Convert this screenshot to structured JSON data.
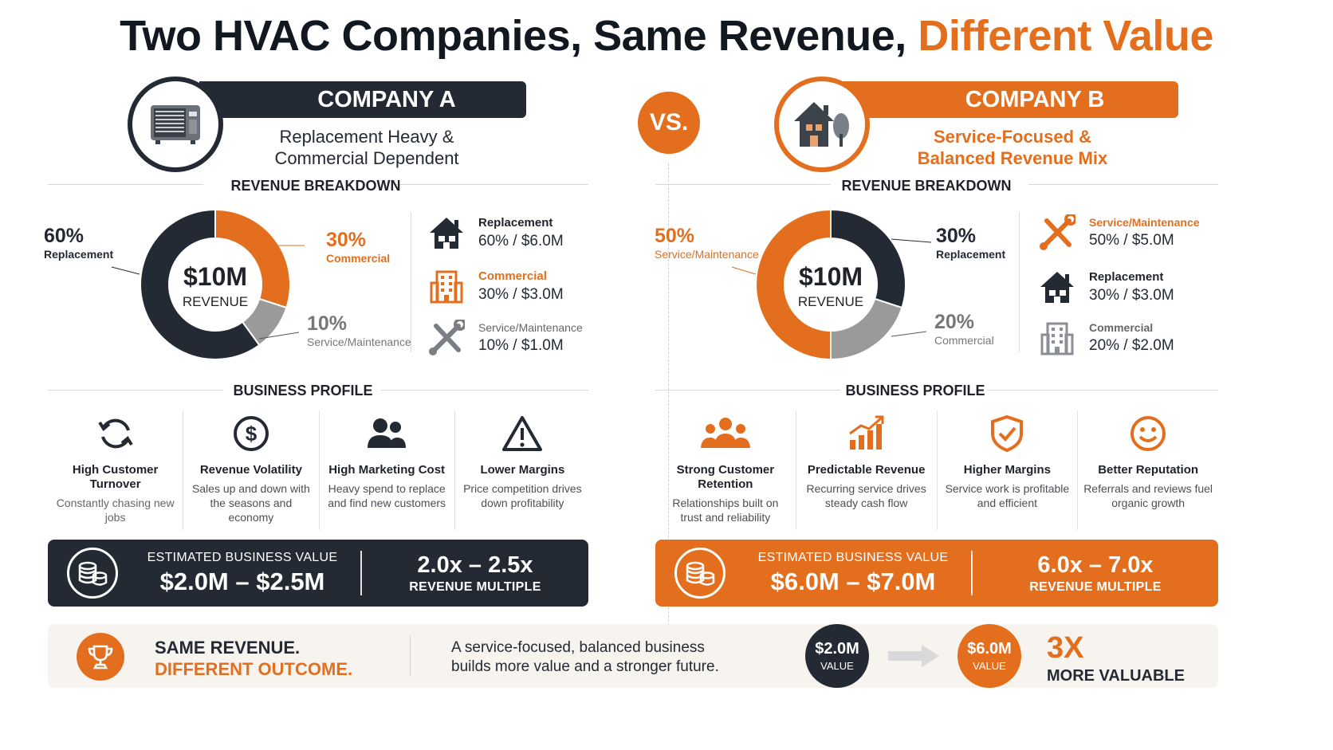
{
  "title": {
    "main": "Two HVAC Companies, Same Revenue,",
    "accent": "Different Value"
  },
  "vs_label": "VS.",
  "colors": {
    "dark": "#232a33",
    "orange": "#e36f1e",
    "gray": "#9a9a9a"
  },
  "company_a": {
    "name": "COMPANY A",
    "subtitle_l1": "Replacement Heavy &",
    "subtitle_l2": "Commercial Dependent",
    "icon": "ac-unit-icon",
    "breakdown_title": "REVENUE BREAKDOWN",
    "center_value": "$10M",
    "center_label": "REVENUE",
    "callouts": [
      {
        "pct": "60%",
        "label": "Replacement"
      },
      {
        "pct": "30%",
        "label": "Commercial"
      },
      {
        "pct": "10%",
        "label": "Service/Maintenance"
      }
    ],
    "legend": [
      {
        "name": "Replacement",
        "value": "60% / $6.0M",
        "icon": "house-icon"
      },
      {
        "name": "Commercial",
        "value": "30% / $3.0M",
        "icon": "building-icon"
      },
      {
        "name": "Service/Maintenance",
        "value": "10% / $1.0M",
        "icon": "tools-icon"
      }
    ],
    "profile_title": "BUSINESS PROFILE",
    "profile": [
      {
        "head": "High Customer Turnover",
        "desc": "Constantly chasing new jobs",
        "icon": "refresh-icon"
      },
      {
        "head": "Revenue Volatility",
        "desc": "Sales up and down with the seasons and economy",
        "icon": "dollar-icon"
      },
      {
        "head": "High Marketing Cost",
        "desc": "Heavy spend to replace and find new customers",
        "icon": "people-icon"
      },
      {
        "head": "Lower Margins",
        "desc": "Price competition drives down profitability",
        "icon": "warning-icon"
      }
    ],
    "value_label": "ESTIMATED BUSINESS VALUE",
    "value": "$2.0M – $2.5M",
    "multiple": "2.0x – 2.5x",
    "multiple_label": "REVENUE MULTIPLE"
  },
  "company_b": {
    "name": "COMPANY B",
    "subtitle_l1": "Service-Focused &",
    "subtitle_l2": "Balanced Revenue Mix",
    "icon": "home-tree-icon",
    "breakdown_title": "REVENUE BREAKDOWN",
    "center_value": "$10M",
    "center_label": "REVENUE",
    "callouts": [
      {
        "pct": "50%",
        "label": "Service/Maintenance"
      },
      {
        "pct": "30%",
        "label": "Replacement"
      },
      {
        "pct": "20%",
        "label": "Commercial"
      }
    ],
    "legend": [
      {
        "name": "Service/Maintenance",
        "value": "50% / $5.0M",
        "icon": "tools-icon"
      },
      {
        "name": "Replacement",
        "value": "30% / $3.0M",
        "icon": "house-icon"
      },
      {
        "name": "Commercial",
        "value": "20% / $2.0M",
        "icon": "building-icon"
      }
    ],
    "profile_title": "BUSINESS PROFILE",
    "profile": [
      {
        "head": "Strong Customer Retention",
        "desc": "Relationships built on trust and reliability",
        "icon": "group-icon"
      },
      {
        "head": "Predictable Revenue",
        "desc": "Recurring service drives steady cash flow",
        "icon": "growth-chart-icon"
      },
      {
        "head": "Higher Margins",
        "desc": "Service work is profitable and efficient",
        "icon": "shield-check-icon"
      },
      {
        "head": "Better Reputation",
        "desc": "Referrals and reviews fuel organic growth",
        "icon": "smile-icon"
      }
    ],
    "value_label": "ESTIMATED BUSINESS VALUE",
    "value": "$6.0M – $7.0M",
    "multiple": "6.0x – 7.0x",
    "multiple_label": "REVENUE MULTIPLE"
  },
  "bottom": {
    "head_l1": "SAME REVENUE.",
    "head_l2": "DIFFERENT OUTCOME.",
    "text_l1": "A service-focused, balanced business",
    "text_l2": "builds more value and a stronger future.",
    "from_value": "$2.0M",
    "from_label": "VALUE",
    "to_value": "$6.0M",
    "to_label": "VALUE",
    "multiplier": "3X",
    "multiplier_label": "MORE VALUABLE"
  },
  "chart_data": [
    {
      "type": "pie",
      "title": "REVENUE BREAKDOWN",
      "center_label": "$10M REVENUE",
      "categories": [
        "Replacement",
        "Commercial",
        "Service/Maintenance"
      ],
      "values": [
        60,
        30,
        10
      ],
      "amounts_musd": [
        6.0,
        3.0,
        1.0
      ],
      "colors": [
        "#232a33",
        "#e36f1e",
        "#9a9a9a"
      ]
    },
    {
      "type": "pie",
      "title": "REVENUE BREAKDOWN",
      "center_label": "$10M REVENUE",
      "categories": [
        "Service/Maintenance",
        "Replacement",
        "Commercial"
      ],
      "values": [
        50,
        30,
        20
      ],
      "amounts_musd": [
        5.0,
        3.0,
        2.0
      ],
      "colors": [
        "#e36f1e",
        "#232a33",
        "#9a9a9a"
      ]
    }
  ]
}
